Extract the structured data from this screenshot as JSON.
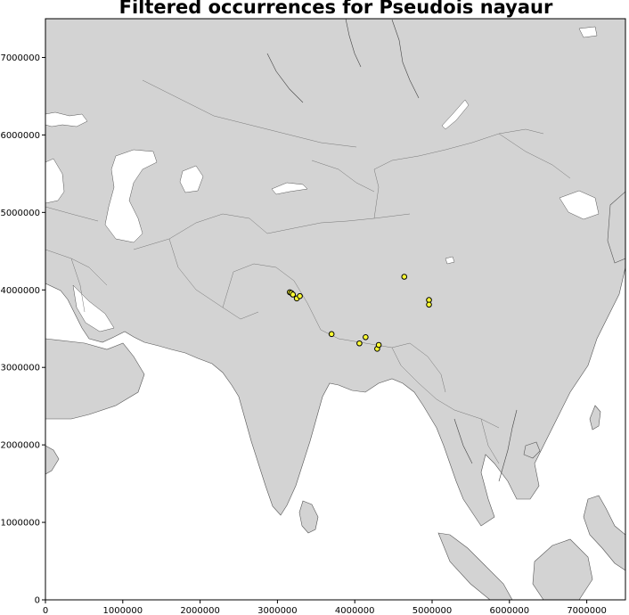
{
  "chart_data": {
    "type": "scatter",
    "title": "Filtered occurrences for Pseudois nayaur",
    "xlabel": "",
    "ylabel": "",
    "xlim": [
      0,
      7500000
    ],
    "ylim": [
      0,
      7500000
    ],
    "x_ticks": [
      0,
      1000000,
      2000000,
      3000000,
      4000000,
      5000000,
      6000000,
      7000000
    ],
    "x_tick_labels": [
      "0",
      "1000000",
      "2000000",
      "3000000",
      "4000000",
      "5000000",
      "6000000",
      "7000000"
    ],
    "y_ticks": [
      0,
      1000000,
      2000000,
      3000000,
      4000000,
      5000000,
      6000000,
      7000000
    ],
    "y_tick_labels": [
      "0",
      "1000000",
      "2000000",
      "3000000",
      "4000000",
      "5000000",
      "6000000",
      "7000000"
    ],
    "grid": false,
    "legend": false,
    "point_color": "#ffff33",
    "point_edge_color": "#000000",
    "land_color": "#d3d3d3",
    "water_color": "#ffffff",
    "points": [
      {
        "x": 3160000,
        "y": 3970000
      },
      {
        "x": 3180000,
        "y": 3960000
      },
      {
        "x": 3200000,
        "y": 3940000
      },
      {
        "x": 3250000,
        "y": 3890000
      },
      {
        "x": 3290000,
        "y": 3920000
      },
      {
        "x": 3700000,
        "y": 3430000
      },
      {
        "x": 4060000,
        "y": 3310000
      },
      {
        "x": 4140000,
        "y": 3390000
      },
      {
        "x": 4290000,
        "y": 3240000
      },
      {
        "x": 4310000,
        "y": 3290000
      },
      {
        "x": 4640000,
        "y": 4170000
      },
      {
        "x": 4960000,
        "y": 3870000
      },
      {
        "x": 4960000,
        "y": 3810000
      }
    ]
  }
}
